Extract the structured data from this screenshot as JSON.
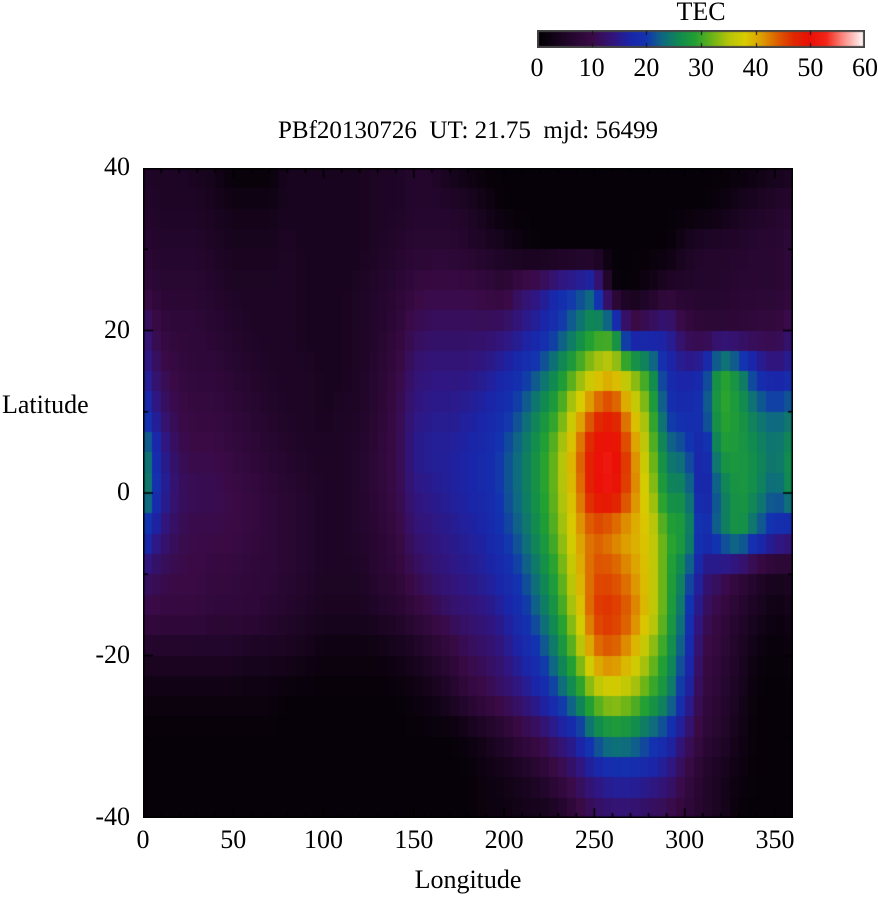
{
  "colorbar": {
    "title": "TEC",
    "min": 0,
    "max": 60,
    "tick_labels": [
      "0",
      "10",
      "20",
      "30",
      "40",
      "50",
      "60"
    ]
  },
  "chart": {
    "title": "PBf20130726  UT: 21.75  mjd: 56499"
  },
  "axes": {
    "x": {
      "label": "Longitude",
      "min": 0,
      "max": 360,
      "major_ticks": [
        0,
        50,
        100,
        150,
        200,
        250,
        300,
        350
      ],
      "minor_step": 10
    },
    "y": {
      "label": "Latitude",
      "min": -40,
      "max": 40,
      "major_ticks": [
        40,
        20,
        0,
        -20,
        -40
      ],
      "minor_step": 10
    }
  },
  "chart_data": {
    "type": "heatmap",
    "title": "PBf20130726  UT: 21.75  mjd: 56499",
    "xlabel": "Longitude",
    "ylabel": "Latitude",
    "value_label": "TEC",
    "value_range": [
      0,
      60
    ],
    "lon_min": 0,
    "lon_max": 360,
    "lon_step": 10,
    "lat_values": [
      40,
      35,
      30,
      25,
      20,
      15,
      10,
      5,
      0,
      -5,
      -10,
      -15,
      -20,
      -25,
      -30,
      -35,
      -40
    ],
    "tec_grid_rows_north_to_south": [
      [
        5,
        5,
        5,
        4,
        3,
        1,
        1,
        1,
        4,
        4,
        4,
        4,
        4,
        5,
        5,
        6,
        6,
        3,
        2,
        1,
        1,
        1,
        1,
        1,
        1,
        1,
        1,
        1,
        1,
        1,
        1,
        1,
        1,
        1,
        2,
        3,
        4
      ],
      [
        6,
        5,
        5,
        5,
        4,
        3,
        3,
        3,
        4,
        4,
        4,
        4,
        4,
        5,
        5,
        6,
        6,
        6,
        5,
        3,
        1,
        1,
        1,
        1,
        1,
        1,
        1,
        1,
        1,
        1,
        1,
        1,
        2,
        4,
        5,
        6,
        7
      ],
      [
        7,
        6,
        6,
        6,
        5,
        4,
        4,
        4,
        5,
        4,
        4,
        4,
        4,
        5,
        6,
        7,
        7,
        7,
        6,
        5,
        4,
        2,
        1,
        1,
        1,
        1,
        1,
        1,
        1,
        1,
        4,
        6,
        6,
        6,
        7,
        7,
        8
      ],
      [
        9,
        7,
        7,
        7,
        6,
        5,
        5,
        5,
        5,
        4,
        4,
        4,
        5,
        6,
        7,
        9,
        10,
        10,
        10,
        9,
        8,
        12,
        14,
        18,
        20,
        22,
        2,
        1,
        3,
        6,
        6,
        6,
        6,
        7,
        7,
        7,
        8
      ],
      [
        14,
        9,
        8,
        8,
        7,
        6,
        5,
        5,
        5,
        4,
        4,
        4,
        5,
        6,
        8,
        11,
        12,
        12,
        12,
        12,
        13,
        15,
        17,
        20,
        24,
        28,
        28,
        12,
        14,
        16,
        10,
        8,
        8,
        8,
        9,
        9,
        12
      ],
      [
        16,
        11,
        9,
        8,
        8,
        7,
        6,
        5,
        5,
        5,
        4,
        4,
        5,
        7,
        9,
        13,
        14,
        14,
        14,
        15,
        17,
        19,
        22,
        26,
        31,
        36,
        38,
        33,
        28,
        18,
        16,
        18,
        30,
        26,
        18,
        15,
        17
      ],
      [
        20,
        13,
        10,
        9,
        9,
        8,
        7,
        6,
        5,
        5,
        4,
        5,
        5,
        7,
        10,
        14,
        15,
        15,
        16,
        17,
        19,
        22,
        26,
        30,
        38,
        45,
        48,
        40,
        32,
        20,
        18,
        20,
        30,
        28,
        24,
        22,
        24
      ],
      [
        26,
        16,
        11,
        10,
        10,
        9,
        8,
        7,
        6,
        5,
        5,
        5,
        6,
        8,
        10,
        15,
        16,
        16,
        17,
        18,
        21,
        24,
        28,
        33,
        42,
        50,
        52,
        44,
        34,
        24,
        22,
        16,
        28,
        28,
        26,
        24,
        27
      ],
      [
        27,
        17,
        12,
        11,
        11,
        10,
        9,
        8,
        7,
        6,
        5,
        5,
        6,
        8,
        10,
        14,
        15,
        16,
        17,
        18,
        21,
        24,
        28,
        33,
        41,
        50,
        51,
        44,
        36,
        26,
        26,
        15,
        24,
        28,
        26,
        22,
        27
      ],
      [
        20,
        14,
        11,
        10,
        10,
        10,
        9,
        8,
        7,
        6,
        5,
        5,
        6,
        7,
        9,
        13,
        14,
        15,
        16,
        17,
        20,
        23,
        27,
        32,
        40,
        44,
        42,
        40,
        38,
        30,
        28,
        18,
        24,
        28,
        22,
        18,
        16
      ],
      [
        13,
        11,
        10,
        10,
        9,
        9,
        8,
        8,
        7,
        6,
        5,
        5,
        5,
        7,
        8,
        11,
        13,
        14,
        15,
        16,
        18,
        21,
        25,
        30,
        38,
        45,
        45,
        42,
        38,
        30,
        24,
        14,
        12,
        9,
        6,
        4,
        5
      ],
      [
        10,
        9,
        9,
        9,
        8,
        8,
        8,
        7,
        6,
        5,
        4,
        4,
        4,
        5,
        6,
        8,
        10,
        12,
        13,
        14,
        16,
        19,
        23,
        28,
        36,
        46,
        47,
        44,
        38,
        30,
        22,
        12,
        9,
        6,
        4,
        2,
        3
      ],
      [
        5,
        5,
        5,
        5,
        5,
        5,
        4,
        4,
        4,
        3,
        2,
        2,
        2,
        2,
        3,
        4,
        6,
        8,
        11,
        12,
        14,
        17,
        20,
        25,
        32,
        42,
        44,
        40,
        34,
        28,
        20,
        10,
        8,
        5,
        2,
        1,
        2
      ],
      [
        2,
        2,
        2,
        2,
        2,
        2,
        2,
        2,
        1,
        1,
        1,
        1,
        1,
        1,
        1,
        2,
        3,
        5,
        8,
        10,
        12,
        14,
        17,
        21,
        26,
        33,
        36,
        34,
        30,
        26,
        18,
        9,
        7,
        4,
        1,
        1,
        1
      ],
      [
        1,
        1,
        1,
        1,
        1,
        1,
        1,
        1,
        1,
        1,
        1,
        1,
        1,
        1,
        1,
        1,
        1,
        1,
        2,
        4,
        6,
        9,
        11,
        14,
        17,
        23,
        26,
        25,
        22,
        19,
        13,
        8,
        6,
        3,
        1,
        1,
        1
      ],
      [
        1,
        1,
        1,
        1,
        1,
        1,
        1,
        1,
        1,
        1,
        1,
        1,
        1,
        1,
        1,
        1,
        1,
        1,
        1,
        2,
        3,
        4,
        6,
        9,
        12,
        15,
        17,
        17,
        16,
        14,
        10,
        6,
        4,
        2,
        1,
        1,
        1
      ],
      [
        1,
        1,
        1,
        1,
        1,
        1,
        1,
        1,
        1,
        1,
        1,
        1,
        1,
        1,
        1,
        1,
        1,
        1,
        1,
        2,
        2,
        3,
        3,
        4,
        8,
        11,
        12,
        12,
        11,
        10,
        8,
        6,
        4,
        1,
        1,
        1,
        1
      ]
    ],
    "colormap_stops": [
      [
        0,
        "#000000"
      ],
      [
        5,
        "#1e0526"
      ],
      [
        10,
        "#3a0a46"
      ],
      [
        14,
        "#31157e"
      ],
      [
        17,
        "#1a25a8"
      ],
      [
        20,
        "#1233b0"
      ],
      [
        23,
        "#0e6a80"
      ],
      [
        26,
        "#108a50"
      ],
      [
        29,
        "#23a032"
      ],
      [
        32,
        "#6ab418"
      ],
      [
        35,
        "#b4c40a"
      ],
      [
        38,
        "#d8cc00"
      ],
      [
        41,
        "#dd9f00"
      ],
      [
        44,
        "#dd5f00"
      ],
      [
        47,
        "#e02800"
      ],
      [
        50,
        "#ea0f06"
      ],
      [
        53,
        "#f22518"
      ],
      [
        56,
        "#fb8880"
      ],
      [
        60,
        "#ffffff"
      ]
    ],
    "legend_position": "top-right",
    "grid": false
  }
}
